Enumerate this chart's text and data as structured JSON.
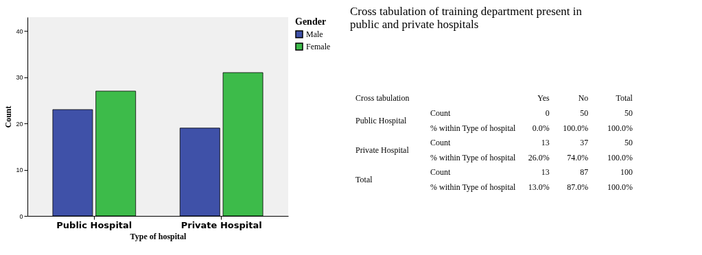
{
  "chart_data": [
    {
      "type": "bar",
      "categories": [
        "Public Hospital",
        "Private Hospital"
      ],
      "xlabel": "Type of hospital",
      "ylabel": "Count",
      "legend_title": "Gender",
      "legend": "top right",
      "series": [
        {
          "name": "Male",
          "color": "#3f51a8",
          "values": [
            23,
            19
          ]
        },
        {
          "name": "Female",
          "color": "#3dbb4a",
          "values": [
            27,
            31
          ]
        }
      ],
      "ylim": [
        0,
        43
      ],
      "yticks": [
        0,
        10,
        20,
        30,
        40
      ],
      "grid": false
    },
    {
      "type": "other",
      "title": "Cross tabulation of training department present in public and private hospitals",
      "annotations": [
        "Cross tabulation",
        "Yes",
        "No",
        "Total",
        "Public Hospital",
        "Count",
        "0",
        "50",
        "50",
        "% within Type of hospital",
        "0.0%",
        "100.0%",
        "100.0%",
        "Private Hospital",
        "Count",
        "13",
        "37",
        "50",
        "% within Type of hospital",
        "26.0%",
        "74.0%",
        "100.0%",
        "Total",
        "Count",
        "13",
        "87",
        "100",
        "% within Type of hospital",
        "13.0%",
        "87.0%",
        "100.0%"
      ]
    }
  ]
}
